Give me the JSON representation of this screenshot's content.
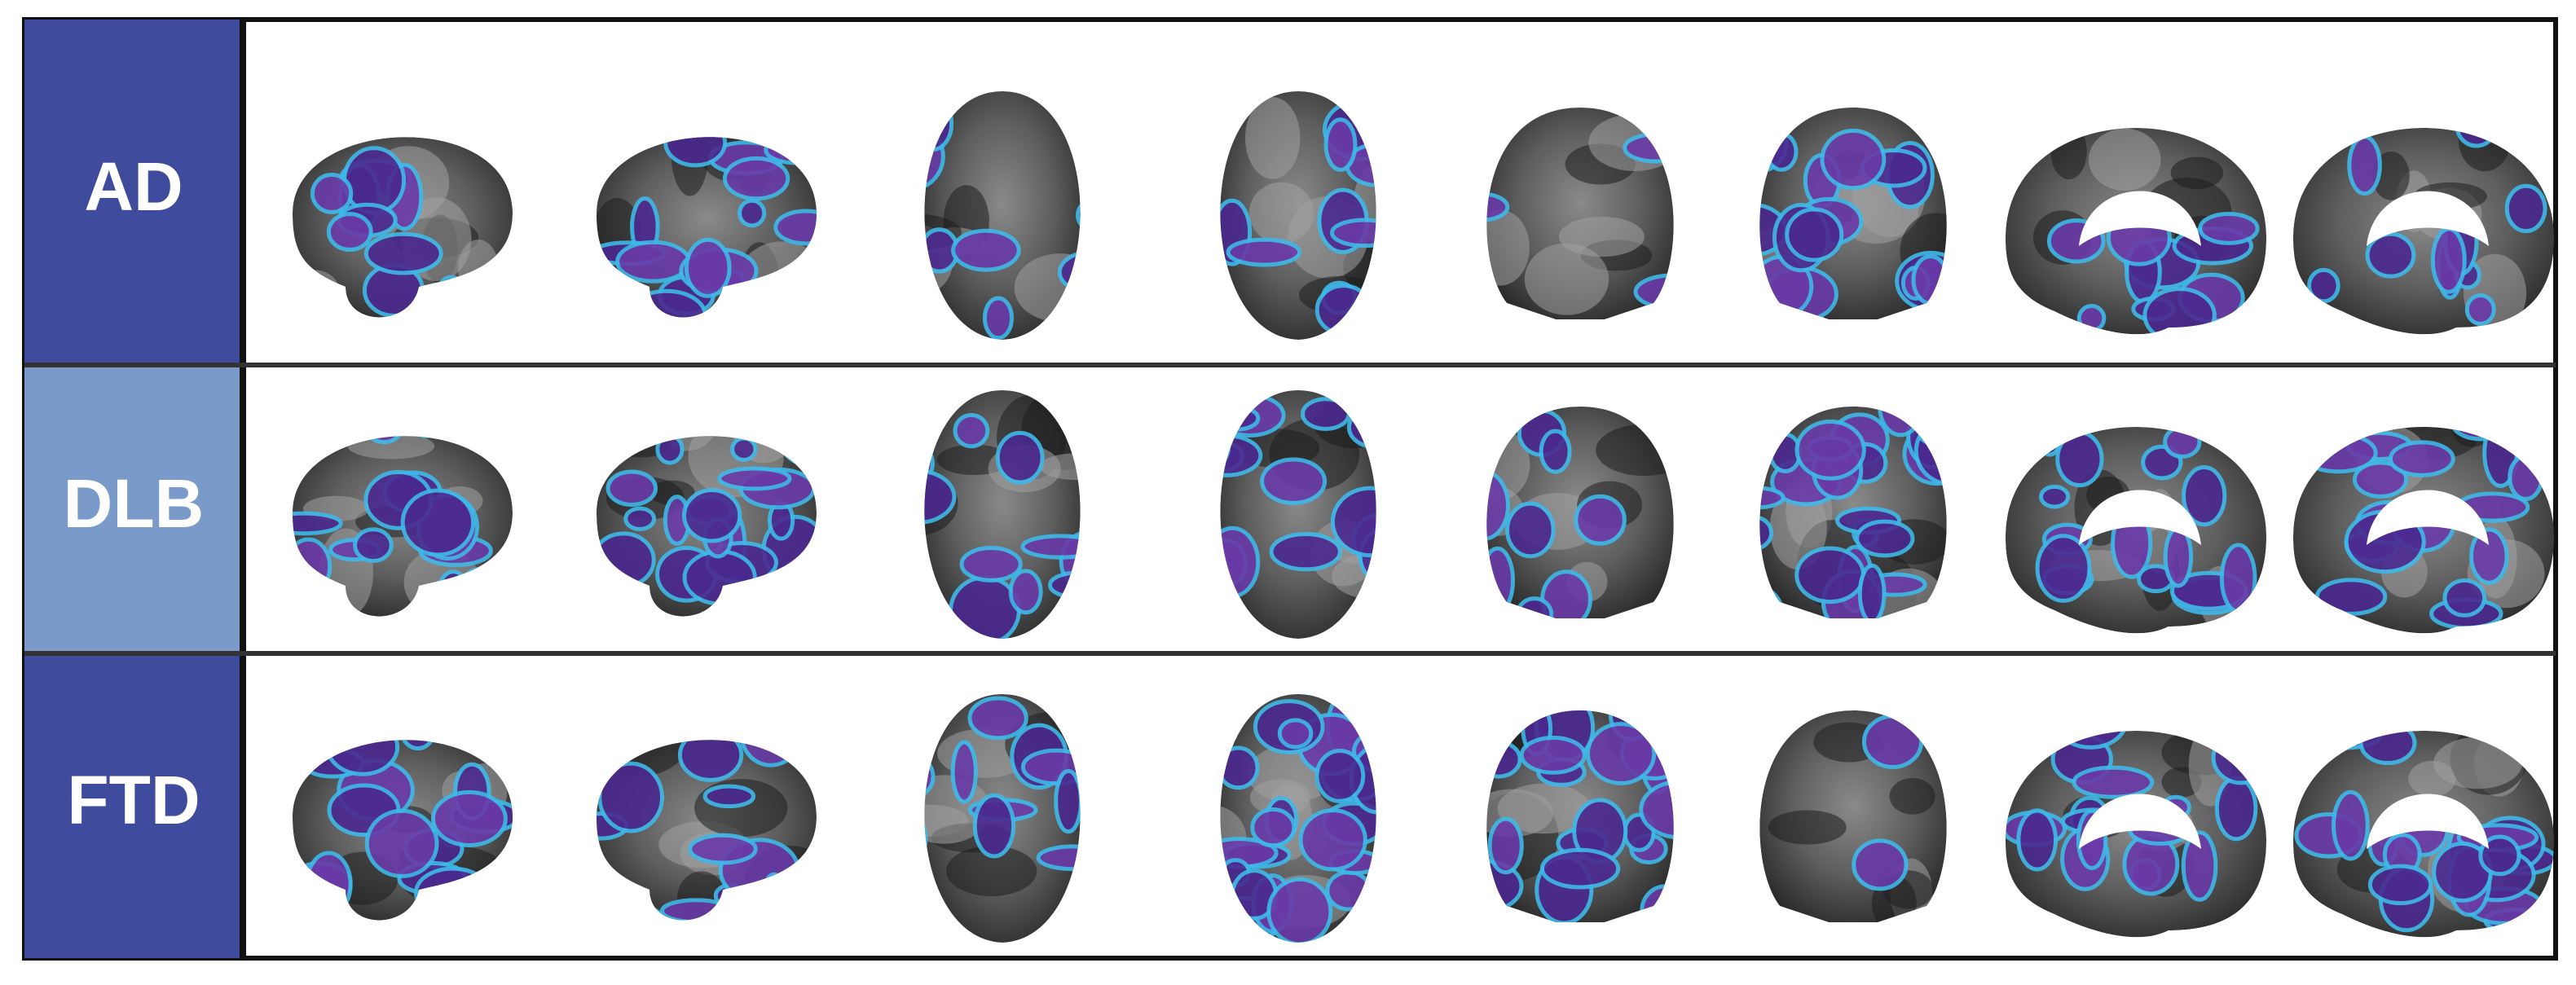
{
  "rows": [
    {
      "label": "AD"
    },
    {
      "label": "DLB"
    },
    {
      "label": "FTD"
    }
  ]
}
